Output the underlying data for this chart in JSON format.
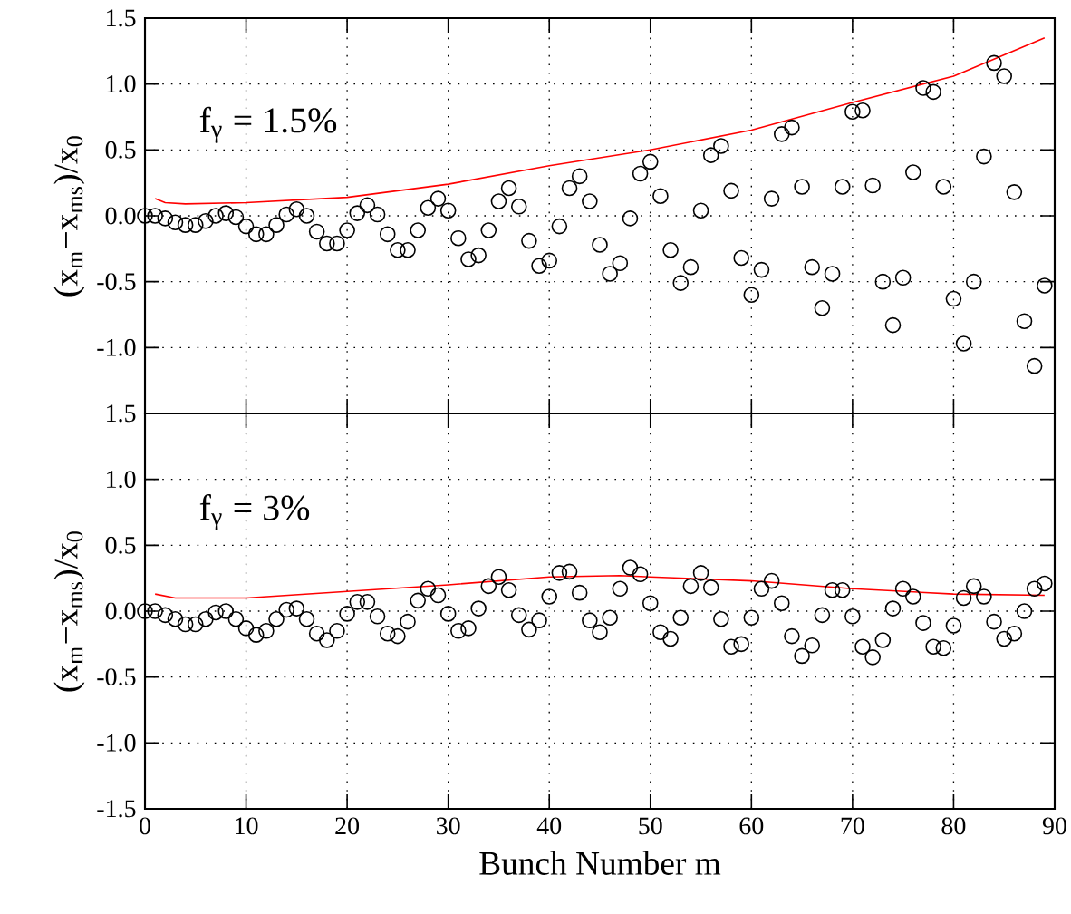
{
  "chart_data": [
    {
      "type": "scatter",
      "ylabel": "(x$_{m}$−x$_{ms}$)/x$_{0}$",
      "annotations": [
        "f$_{γ}$ = 1.5%"
      ],
      "xlim": [
        0,
        90
      ],
      "ylim": [
        -1.5,
        1.5
      ],
      "xticks": [
        0,
        10,
        20,
        30,
        40,
        50,
        60,
        70,
        80,
        90
      ],
      "yticks": [
        {
          "value": -1.5,
          "label": null
        },
        {
          "value": -1,
          "label": "-1.0"
        },
        {
          "value": -0.5,
          "label": "-0.5"
        },
        {
          "value": 0,
          "label": "0.0"
        },
        {
          "value": 0.5,
          "label": "0.5"
        },
        {
          "value": 1,
          "label": "1.0"
        },
        {
          "value": 1.5,
          "label": "1.5"
        }
      ],
      "tick_labels": "y",
      "grid": true,
      "x": [
        0,
        1,
        2,
        3,
        4,
        5,
        6,
        7,
        8,
        9,
        10,
        11,
        12,
        13,
        14,
        15,
        16,
        17,
        18,
        19,
        20,
        21,
        22,
        23,
        24,
        25,
        26,
        27,
        28,
        29,
        30,
        31,
        32,
        33,
        34,
        35,
        36,
        37,
        38,
        39,
        40,
        41,
        42,
        43,
        44,
        45,
        46,
        47,
        48,
        49,
        50,
        51,
        52,
        53,
        54,
        55,
        56,
        57,
        58,
        59,
        60,
        61,
        62,
        63,
        64,
        65,
        66,
        67,
        68,
        69,
        70,
        71,
        72,
        73,
        74,
        75,
        76,
        77,
        78,
        79,
        80,
        81,
        82,
        83,
        84,
        85,
        86,
        87,
        88,
        89
      ],
      "series": [
        {
          "color": "#000000",
          "marker": "circle",
          "values": [
            0,
            0,
            -0.02,
            -0.05,
            -0.07,
            -0.07,
            -0.04,
            0,
            0.02,
            -0.01,
            -0.08,
            -0.14,
            -0.14,
            -0.07,
            0.01,
            0.05,
            0,
            -0.12,
            -0.21,
            -0.21,
            -0.11,
            0.02,
            0.08,
            0.01,
            -0.14,
            -0.26,
            -0.26,
            -0.11,
            0.06,
            0.13,
            0.04,
            -0.17,
            -0.33,
            -0.3,
            -0.11,
            0.11,
            0.21,
            0.07,
            -0.19,
            -0.38,
            -0.34,
            -0.08,
            0.21,
            0.3,
            0.11,
            -0.22,
            -0.44,
            -0.36,
            -0.02,
            0.32,
            0.41,
            0.15,
            -0.26,
            -0.51,
            -0.39,
            0.04,
            0.46,
            0.53,
            0.19,
            -0.32,
            -0.6,
            -0.41,
            0.13,
            0.62,
            0.67,
            0.22,
            -0.39,
            -0.7,
            -0.44,
            0.22,
            0.79,
            0.8,
            0.23,
            -0.5,
            -0.83,
            -0.47,
            0.33,
            0.97,
            0.94,
            0.22,
            -0.63,
            -0.97,
            -0.5,
            0.45,
            1.16,
            1.06,
            0.18,
            -0.8,
            -1.14,
            -0.53
          ]
        },
        {
          "type": "line",
          "color": "#ff0000",
          "x": [
            1,
            2,
            4,
            10,
            20,
            30,
            40,
            50,
            60,
            70,
            80,
            89
          ],
          "values": [
            0.13,
            0.1,
            0.09,
            0.1,
            0.14,
            0.24,
            0.38,
            0.5,
            0.65,
            0.86,
            1.06,
            1.35
          ]
        }
      ]
    },
    {
      "type": "scatter",
      "ylabel": "(x$_{m}$−x$_{ms}$)/x$_{0}$",
      "xlabel": "Bunch Number m",
      "annotations": [
        "f$_{γ}$ = 3%"
      ],
      "xlim": [
        0,
        90
      ],
      "ylim": [
        -1.5,
        1.5
      ],
      "xticks": [
        0,
        10,
        20,
        30,
        40,
        50,
        60,
        70,
        80,
        90
      ],
      "yticks": [
        {
          "value": -1.5,
          "label": "-1.5"
        },
        {
          "value": -1,
          "label": "-1.0"
        },
        {
          "value": -0.5,
          "label": "-0.5"
        },
        {
          "value": 0,
          "label": "0.0"
        },
        {
          "value": 0.5,
          "label": "0.5"
        },
        {
          "value": 1,
          "label": "1.0"
        },
        {
          "value": 1.5,
          "label": "1.5"
        }
      ],
      "grid": true,
      "x": [
        0,
        1,
        2,
        3,
        4,
        5,
        6,
        7,
        8,
        9,
        10,
        11,
        12,
        13,
        14,
        15,
        16,
        17,
        18,
        19,
        20,
        21,
        22,
        23,
        24,
        25,
        26,
        27,
        28,
        29,
        30,
        31,
        32,
        33,
        34,
        35,
        36,
        37,
        38,
        39,
        40,
        41,
        42,
        43,
        44,
        45,
        46,
        47,
        48,
        49,
        50,
        51,
        52,
        53,
        54,
        55,
        56,
        57,
        58,
        59,
        60,
        61,
        62,
        63,
        64,
        65,
        66,
        67,
        68,
        69,
        70,
        71,
        72,
        73,
        74,
        75,
        76,
        77,
        78,
        79,
        80,
        81,
        82,
        83,
        84,
        85,
        86,
        87,
        88,
        89
      ],
      "series": [
        {
          "color": "#000000",
          "marker": "circle",
          "values": [
            0,
            0,
            -0.03,
            -0.06,
            -0.1,
            -0.1,
            -0.06,
            -0.01,
            0,
            -0.06,
            -0.13,
            -0.18,
            -0.15,
            -0.06,
            0.01,
            0.02,
            -0.06,
            -0.17,
            -0.22,
            -0.15,
            -0.02,
            0.07,
            0.07,
            -0.04,
            -0.17,
            -0.19,
            -0.08,
            0.08,
            0.17,
            0.12,
            -0.02,
            -0.15,
            -0.13,
            0.02,
            0.19,
            0.26,
            0.16,
            -0.03,
            -0.14,
            -0.07,
            0.11,
            0.29,
            0.3,
            0.14,
            -0.07,
            -0.16,
            -0.05,
            0.17,
            0.33,
            0.28,
            0.06,
            -0.16,
            -0.21,
            -0.05,
            0.19,
            0.29,
            0.18,
            -0.06,
            -0.27,
            -0.25,
            -0.05,
            0.17,
            0.23,
            0.06,
            -0.19,
            -0.34,
            -0.26,
            -0.03,
            0.16,
            0.16,
            -0.04,
            -0.27,
            -0.35,
            -0.22,
            0.02,
            0.17,
            0.11,
            -0.09,
            -0.27,
            -0.28,
            -0.11,
            0.1,
            0.19,
            0.11,
            -0.08,
            -0.21,
            -0.17,
            0,
            0.17,
            0.21
          ]
        },
        {
          "type": "line",
          "color": "#ff0000",
          "x": [
            1,
            3,
            10,
            20,
            30,
            40,
            47,
            50,
            60,
            70,
            80,
            89
          ],
          "values": [
            0.13,
            0.1,
            0.1,
            0.15,
            0.2,
            0.26,
            0.27,
            0.26,
            0.23,
            0.17,
            0.13,
            0.12
          ]
        }
      ]
    }
  ]
}
